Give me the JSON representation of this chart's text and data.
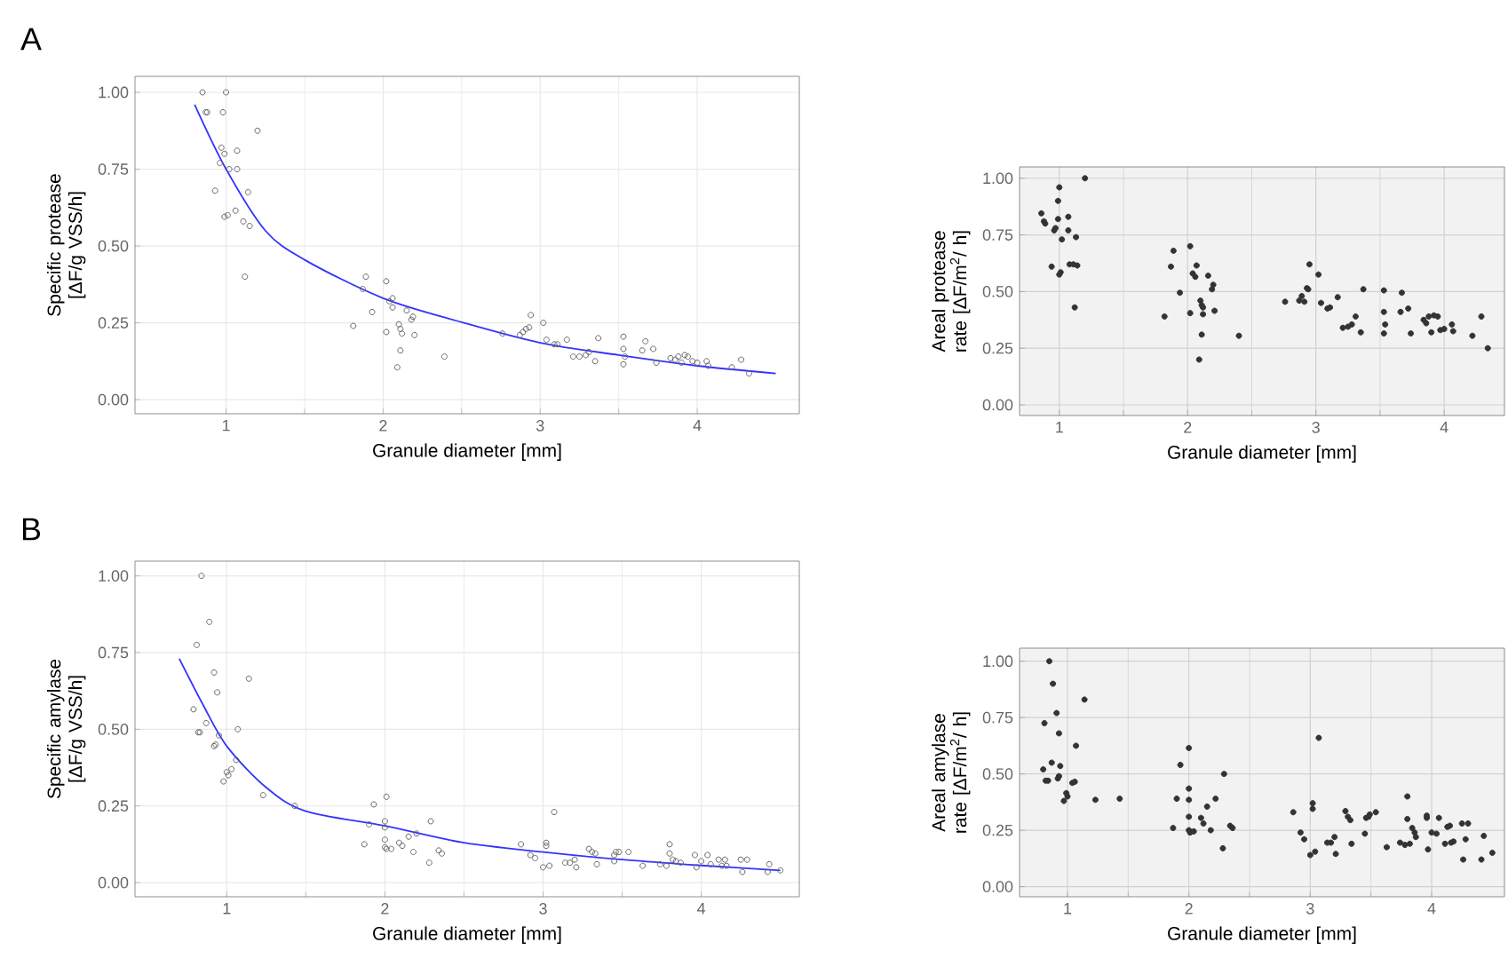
{
  "chart_data": [
    {
      "type": "scatter",
      "annotations": [
        "A"
      ],
      "xlabel": "Granule diameter [mm]",
      "ylabel": "Specific protease [ΔF/g VSS/h]",
      "xlim": [
        0.42,
        4.65
      ],
      "ylim": [
        -0.046,
        1.052
      ],
      "xticks": [
        1,
        2,
        3,
        4
      ],
      "yticks": [
        {
          "value": 0,
          "label": "0.00"
        },
        {
          "value": 0.25,
          "label": "0.25"
        },
        {
          "value": 0.5,
          "label": "0.50"
        },
        {
          "value": 0.75,
          "label": "0.75"
        },
        {
          "value": 1,
          "label": "1.00"
        }
      ],
      "grid": true,
      "marker": "circle",
      "series": [
        {
          "color": "#666666",
          "x": [
            0.85,
            1.0,
            0.87,
            0.88,
            0.98,
            1.2,
            0.97,
            0.99,
            1.07,
            0.96,
            1.02,
            1.07,
            0.93,
            1.14,
            1.06,
            0.99,
            1.01,
            1.11,
            1.15,
            1.12,
            1.81,
            1.87,
            1.89,
            1.93,
            2.02,
            2.02,
            2.04,
            2.06,
            2.06,
            2.1,
            2.11,
            2.12,
            2.11,
            2.09,
            2.15,
            2.18,
            2.19,
            2.2,
            2.39,
            2.76,
            2.87,
            2.89,
            2.91,
            2.93,
            2.94,
            3.02,
            3.04,
            3.09,
            3.11,
            3.17,
            3.21,
            3.25,
            3.29,
            3.31,
            3.35,
            3.37,
            3.53,
            3.53,
            3.54,
            3.53,
            3.65,
            3.67,
            3.72,
            3.74,
            3.83,
            3.86,
            3.88,
            3.9,
            3.92,
            3.94,
            3.97,
            4.0,
            4.06,
            4.07,
            4.22,
            4.28,
            4.33
          ],
          "values": [
            1.0,
            1.0,
            0.935,
            0.935,
            0.935,
            0.875,
            0.82,
            0.8,
            0.81,
            0.77,
            0.75,
            0.75,
            0.68,
            0.675,
            0.615,
            0.595,
            0.6,
            0.58,
            0.565,
            0.4,
            0.24,
            0.36,
            0.4,
            0.285,
            0.385,
            0.22,
            0.32,
            0.33,
            0.3,
            0.245,
            0.23,
            0.215,
            0.16,
            0.105,
            0.29,
            0.26,
            0.27,
            0.21,
            0.14,
            0.215,
            0.21,
            0.22,
            0.23,
            0.235,
            0.275,
            0.25,
            0.195,
            0.18,
            0.18,
            0.195,
            0.14,
            0.14,
            0.145,
            0.155,
            0.125,
            0.2,
            0.205,
            0.165,
            0.14,
            0.115,
            0.16,
            0.19,
            0.165,
            0.12,
            0.135,
            0.13,
            0.14,
            0.12,
            0.145,
            0.14,
            0.125,
            0.12,
            0.125,
            0.11,
            0.105,
            0.13,
            0.085
          ]
        },
        {
          "type": "line",
          "marker": "none",
          "color": "#3333ff",
          "x": [
            0.8,
            1.0,
            1.25,
            1.5,
            2.0,
            2.5,
            3.0,
            3.5,
            4.0,
            4.5
          ],
          "values": [
            0.96,
            0.75,
            0.55,
            0.455,
            0.33,
            0.252,
            0.185,
            0.145,
            0.11,
            0.085
          ]
        }
      ]
    },
    {
      "type": "scatter",
      "xlabel": "Granule diameter [mm]",
      "ylabel": "Areal protease rate [ΔF/m$^{2}$/ h]",
      "xlim": [
        0.69,
        4.47
      ],
      "ylim": [
        -0.047,
        1.05
      ],
      "xticks": [
        1,
        2,
        3,
        4
      ],
      "yticks": [
        {
          "value": 0,
          "label": "0.00"
        },
        {
          "value": 0.25,
          "label": "0.25"
        },
        {
          "value": 0.5,
          "label": "0.50"
        },
        {
          "value": 0.75,
          "label": "0.75"
        },
        {
          "value": 1,
          "label": "1.00"
        }
      ],
      "grid": true,
      "marker": "circle",
      "series": [
        {
          "color": "#333333",
          "x": [
            0.86,
            0.88,
            0.89,
            0.94,
            0.96,
            0.97,
            0.99,
            0.99,
            1.0,
            1.0,
            1.01,
            1.02,
            1.07,
            1.07,
            1.08,
            1.11,
            1.13,
            1.14,
            1.12,
            1.2,
            1.82,
            1.87,
            1.89,
            1.94,
            2.02,
            2.02,
            2.04,
            2.06,
            2.07,
            2.1,
            2.11,
            2.12,
            2.11,
            2.09,
            2.12,
            2.16,
            2.19,
            2.2,
            2.21,
            2.4,
            2.76,
            2.87,
            2.89,
            2.91,
            2.93,
            2.94,
            2.95,
            3.02,
            3.04,
            3.09,
            3.11,
            3.17,
            3.21,
            3.25,
            3.28,
            3.31,
            3.35,
            3.37,
            3.53,
            3.53,
            3.54,
            3.53,
            3.66,
            3.67,
            3.72,
            3.74,
            3.84,
            3.86,
            3.88,
            3.9,
            3.92,
            3.95,
            3.97,
            4.0,
            4.06,
            4.07,
            4.22,
            4.29,
            4.34
          ],
          "values": [
            0.845,
            0.81,
            0.8,
            0.61,
            0.77,
            0.78,
            0.9,
            0.82,
            0.96,
            0.575,
            0.585,
            0.73,
            0.83,
            0.77,
            0.62,
            0.62,
            0.74,
            0.615,
            0.43,
            1.0,
            0.39,
            0.61,
            0.68,
            0.495,
            0.7,
            0.405,
            0.58,
            0.565,
            0.615,
            0.46,
            0.44,
            0.43,
            0.31,
            0.2,
            0.4,
            0.57,
            0.51,
            0.53,
            0.415,
            0.305,
            0.455,
            0.46,
            0.48,
            0.455,
            0.515,
            0.51,
            0.62,
            0.575,
            0.45,
            0.425,
            0.43,
            0.475,
            0.34,
            0.345,
            0.355,
            0.39,
            0.32,
            0.51,
            0.505,
            0.41,
            0.355,
            0.315,
            0.41,
            0.495,
            0.425,
            0.315,
            0.375,
            0.36,
            0.39,
            0.32,
            0.395,
            0.39,
            0.33,
            0.335,
            0.355,
            0.325,
            0.305,
            0.39,
            0.25
          ]
        }
      ]
    },
    {
      "type": "scatter",
      "annotations": [
        "B"
      ],
      "xlabel": "Granule diameter [mm]",
      "ylabel": "Specific amylase [ΔF/g VSS/h]",
      "xlim": [
        0.42,
        4.62
      ],
      "ylim": [
        -0.046,
        1.048
      ],
      "xticks": [
        1,
        2,
        3,
        4
      ],
      "yticks": [
        {
          "value": 0,
          "label": "0.00"
        },
        {
          "value": 0.25,
          "label": "0.25"
        },
        {
          "value": 0.5,
          "label": "0.50"
        },
        {
          "value": 0.75,
          "label": "0.75"
        },
        {
          "value": 1,
          "label": "1.00"
        }
      ],
      "grid": true,
      "marker": "circle",
      "series": [
        {
          "color": "#666666",
          "x": [
            0.84,
            0.89,
            0.81,
            0.92,
            0.94,
            0.79,
            0.87,
            0.82,
            0.83,
            0.95,
            0.93,
            0.92,
            1.07,
            1.14,
            1.06,
            1.03,
            1.0,
            1.01,
            0.98,
            1.23,
            1.43,
            1.87,
            1.9,
            1.93,
            2.0,
            2.01,
            2.0,
            2.0,
            2.0,
            2.01,
            2.04,
            2.09,
            2.11,
            2.15,
            2.2,
            2.18,
            2.28,
            2.29,
            2.34,
            2.36,
            2.86,
            2.92,
            2.95,
            3.0,
            3.02,
            3.02,
            3.04,
            3.07,
            3.14,
            3.17,
            3.2,
            3.21,
            3.29,
            3.31,
            3.33,
            3.34,
            3.45,
            3.46,
            3.48,
            3.45,
            3.54,
            3.63,
            3.74,
            3.78,
            3.8,
            3.8,
            3.82,
            3.84,
            3.87,
            3.96,
            3.97,
            4.0,
            4.04,
            4.06,
            4.11,
            4.13,
            4.15,
            4.16,
            4.25,
            4.26,
            4.29,
            4.43,
            4.42,
            4.5
          ],
          "values": [
            1.0,
            0.85,
            0.775,
            0.685,
            0.62,
            0.565,
            0.52,
            0.49,
            0.49,
            0.48,
            0.45,
            0.445,
            0.5,
            0.665,
            0.4,
            0.37,
            0.36,
            0.35,
            0.33,
            0.285,
            0.25,
            0.125,
            0.19,
            0.255,
            0.2,
            0.28,
            0.18,
            0.14,
            0.115,
            0.11,
            0.11,
            0.13,
            0.12,
            0.15,
            0.16,
            0.1,
            0.065,
            0.2,
            0.105,
            0.095,
            0.125,
            0.09,
            0.08,
            0.05,
            0.13,
            0.12,
            0.055,
            0.23,
            0.065,
            0.065,
            0.075,
            0.05,
            0.11,
            0.1,
            0.095,
            0.06,
            0.09,
            0.1,
            0.1,
            0.07,
            0.1,
            0.055,
            0.06,
            0.055,
            0.125,
            0.095,
            0.075,
            0.07,
            0.065,
            0.09,
            0.05,
            0.07,
            0.09,
            0.06,
            0.075,
            0.055,
            0.075,
            0.055,
            0.075,
            0.035,
            0.075,
            0.06,
            0.035,
            0.04
          ]
        },
        {
          "type": "line",
          "marker": "none",
          "color": "#3333ff",
          "x": [
            0.7,
            0.85,
            1.0,
            1.25,
            1.5,
            2.0,
            2.5,
            3.0,
            3.5,
            4.0,
            4.5
          ],
          "values": [
            0.73,
            0.58,
            0.445,
            0.31,
            0.233,
            0.185,
            0.13,
            0.1,
            0.075,
            0.056,
            0.04
          ]
        }
      ]
    },
    {
      "type": "scatter",
      "xlabel": "Granule diameter [mm]",
      "ylabel": "Areal amylase rate [ΔF/m$^{2}$/ h]",
      "xlim": [
        0.605,
        4.6
      ],
      "ylim": [
        -0.045,
        1.058
      ],
      "xticks": [
        1,
        2,
        3,
        4
      ],
      "yticks": [
        {
          "value": 0,
          "label": "0.00"
        },
        {
          "value": 0.25,
          "label": "0.25"
        },
        {
          "value": 0.5,
          "label": "0.50"
        },
        {
          "value": 0.75,
          "label": "0.75"
        },
        {
          "value": 1,
          "label": "1.00"
        }
      ],
      "grid": true,
      "marker": "circle",
      "series": [
        {
          "color": "#333333",
          "x": [
            0.8,
            0.81,
            0.82,
            0.84,
            0.85,
            0.87,
            0.88,
            0.91,
            0.92,
            0.93,
            0.93,
            0.94,
            0.97,
            0.99,
            1.0,
            1.04,
            1.06,
            1.07,
            1.14,
            1.23,
            1.43,
            1.87,
            1.9,
            1.93,
            2.0,
            2.0,
            2.0,
            2.0,
            2.0,
            2.01,
            2.04,
            2.1,
            2.12,
            2.15,
            2.18,
            2.22,
            2.28,
            2.29,
            2.34,
            2.36,
            2.86,
            2.92,
            2.95,
            3.0,
            3.02,
            3.02,
            3.04,
            3.07,
            3.14,
            3.17,
            3.2,
            3.21,
            3.29,
            3.31,
            3.33,
            3.34,
            3.45,
            3.46,
            3.48,
            3.49,
            3.54,
            3.63,
            3.74,
            3.78,
            3.8,
            3.8,
            3.82,
            3.84,
            3.86,
            3.87,
            3.96,
            3.96,
            3.97,
            4.0,
            4.04,
            4.06,
            4.11,
            4.13,
            4.15,
            4.16,
            4.18,
            4.25,
            4.26,
            4.28,
            4.3,
            4.41,
            4.43,
            4.5
          ],
          "values": [
            0.52,
            0.725,
            0.47,
            0.47,
            1.0,
            0.55,
            0.9,
            0.77,
            0.48,
            0.49,
            0.68,
            0.535,
            0.38,
            0.415,
            0.4,
            0.46,
            0.465,
            0.625,
            0.83,
            0.385,
            0.39,
            0.26,
            0.39,
            0.54,
            0.615,
            0.435,
            0.385,
            0.31,
            0.25,
            0.24,
            0.245,
            0.305,
            0.28,
            0.355,
            0.25,
            0.39,
            0.17,
            0.5,
            0.27,
            0.26,
            0.33,
            0.24,
            0.21,
            0.14,
            0.37,
            0.345,
            0.155,
            0.66,
            0.195,
            0.195,
            0.22,
            0.145,
            0.335,
            0.31,
            0.295,
            0.19,
            0.235,
            0.305,
            0.31,
            0.32,
            0.33,
            0.175,
            0.195,
            0.185,
            0.4,
            0.3,
            0.19,
            0.26,
            0.24,
            0.22,
            0.315,
            0.305,
            0.165,
            0.24,
            0.235,
            0.305,
            0.19,
            0.265,
            0.27,
            0.195,
            0.2,
            0.28,
            0.12,
            0.21,
            0.28,
            0.12,
            0.225,
            0.15
          ]
        }
      ]
    }
  ]
}
